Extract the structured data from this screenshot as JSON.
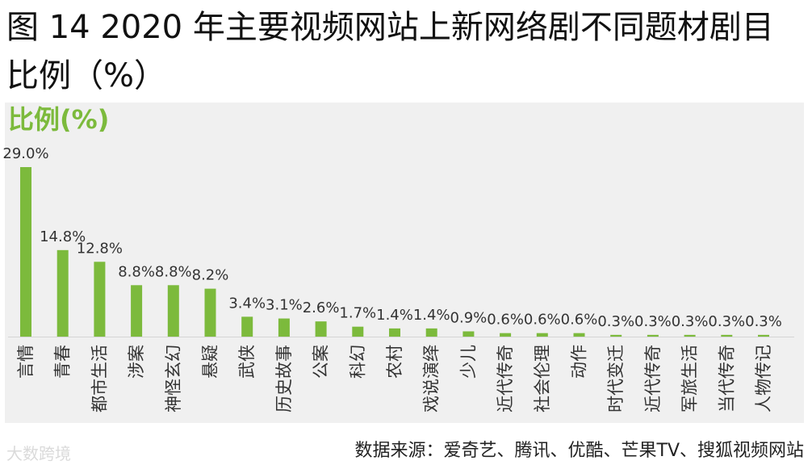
{
  "title": "图 14 2020 年主要视频网站上新网络剧不同题材剧目比例（%）",
  "unit_label": "比例(%)",
  "source": "数据来源：爱奇艺、腾讯、优酷、芒果TV、搜狐视频网站",
  "watermark": "大数跨境",
  "colors": {
    "bar": "#7cba3c",
    "plot_bg": "#f0f0f0"
  },
  "chart_data": {
    "type": "bar",
    "categories": [
      "言情",
      "青春",
      "都市生活",
      "涉案",
      "神怪玄幻",
      "悬疑",
      "武侠",
      "历史故事",
      "公案",
      "科幻",
      "农村",
      "戏说演绎",
      "少儿",
      "近代传奇",
      "社会伦理",
      "动作",
      "时代变迁",
      "近代传奇",
      "军旅生活",
      "当代传奇",
      "人物传记"
    ],
    "values": [
      29.0,
      14.8,
      12.8,
      8.8,
      8.8,
      8.2,
      3.4,
      3.1,
      2.6,
      1.7,
      1.4,
      1.4,
      0.9,
      0.6,
      0.6,
      0.6,
      0.3,
      0.3,
      0.3,
      0.3,
      0.3
    ],
    "data_labels": [
      "29.0%",
      "14.8%",
      "12.8%",
      "8.8%",
      "8.8%",
      "8.2%",
      "3.4%",
      "3.1%",
      "2.6%",
      "1.7%",
      "1.4%",
      "1.4%",
      "0.9%",
      "0.6%",
      "0.6%",
      "0.6%",
      "0.3%",
      "0.3%",
      "0.3%",
      "0.3%",
      "0.3%"
    ],
    "ylim": [
      0,
      30
    ],
    "grid": false,
    "legend": "none"
  }
}
